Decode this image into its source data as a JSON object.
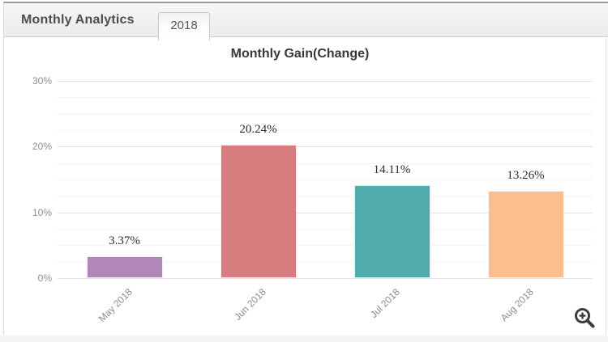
{
  "panel": {
    "header_title": "Monthly Analytics",
    "tab_label": "2018"
  },
  "icons": {
    "zoom_in": "magnifier-plus-icon"
  },
  "chart_data": {
    "type": "bar",
    "title": "Monthly Gain(Change)",
    "xlabel": "",
    "ylabel": "",
    "categories": [
      "May 2018",
      "Jun 2018",
      "Jul 2018",
      "Aug 2018"
    ],
    "values": [
      3.37,
      20.24,
      14.11,
      13.26
    ],
    "data_labels": [
      "3.37%",
      "20.24%",
      "14.11%",
      "13.26%"
    ],
    "bar_colors": [
      "#b187b8",
      "#d87d7f",
      "#50acac",
      "#fcbe8d"
    ],
    "ylim": [
      0,
      30
    ],
    "y_major_step": 10,
    "y_minor_step": 2.5,
    "y_tick_labels": [
      "0%",
      "10%",
      "20%",
      "30%"
    ],
    "grid": "on",
    "legend": "none",
    "x_label_rotation": -45
  }
}
